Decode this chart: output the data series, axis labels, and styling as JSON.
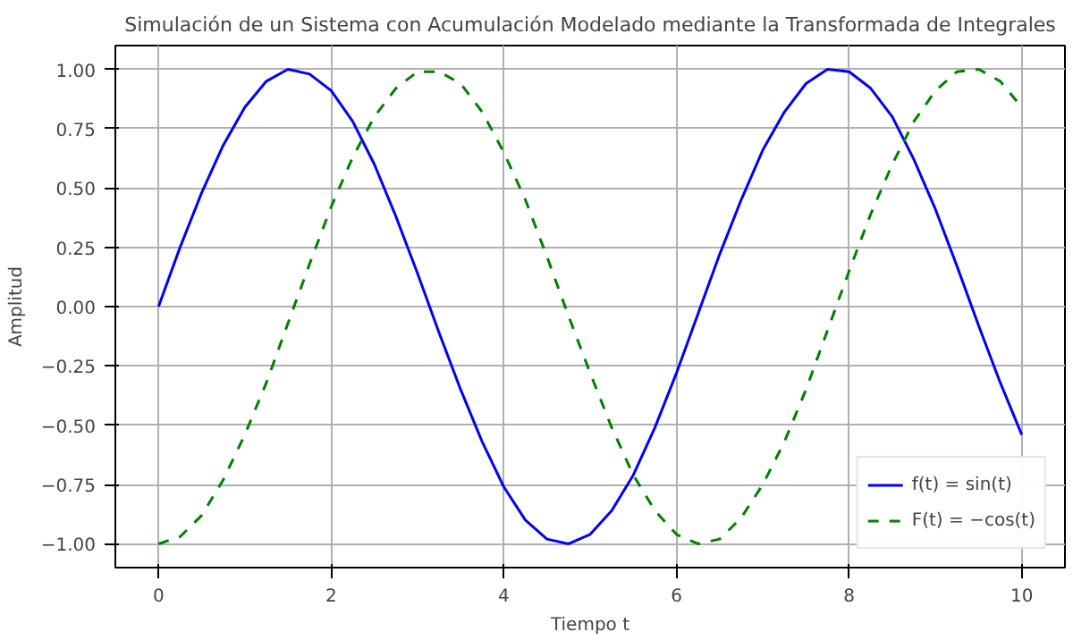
{
  "chart_data": {
    "type": "line",
    "title": "Simulación de un Sistema con Acumulación Modelado mediante la Transformada de Integrales",
    "xlabel": "Tiempo t",
    "ylabel": "Amplitud",
    "x": [
      0,
      0.25,
      0.5,
      0.75,
      1,
      1.25,
      1.5,
      1.75,
      2,
      2.25,
      2.5,
      2.75,
      3,
      3.25,
      3.5,
      3.75,
      4,
      4.25,
      4.5,
      4.75,
      5,
      5.25,
      5.5,
      5.75,
      6,
      6.25,
      6.5,
      6.75,
      7,
      7.25,
      7.5,
      7.75,
      8,
      8.25,
      8.5,
      8.75,
      9,
      9.25,
      9.5,
      9.75,
      10
    ],
    "series": [
      {
        "name": "f(t) = sin(t)",
        "color": "#0000ff",
        "line_style": "solid",
        "values": [
          0,
          0.25,
          0.48,
          0.68,
          0.84,
          0.95,
          1.0,
          0.98,
          0.91,
          0.78,
          0.6,
          0.38,
          0.14,
          -0.11,
          -0.35,
          -0.57,
          -0.76,
          -0.9,
          -0.98,
          -1.0,
          -0.96,
          -0.86,
          -0.71,
          -0.51,
          -0.28,
          -0.03,
          0.22,
          0.45,
          0.66,
          0.82,
          0.94,
          1.0,
          0.99,
          0.92,
          0.8,
          0.62,
          0.41,
          0.17,
          -0.08,
          -0.32,
          -0.54
        ]
      },
      {
        "name": "F(t) = −cos(t)",
        "color": "#008000",
        "line_style": "dashed",
        "values": [
          -1.0,
          -0.97,
          -0.88,
          -0.73,
          -0.54,
          -0.32,
          -0.07,
          0.18,
          0.42,
          0.63,
          0.8,
          0.92,
          0.99,
          0.99,
          0.94,
          0.82,
          0.65,
          0.45,
          0.21,
          -0.04,
          -0.28,
          -0.51,
          -0.71,
          -0.86,
          -0.96,
          -1.0,
          -0.98,
          -0.89,
          -0.75,
          -0.57,
          -0.35,
          -0.1,
          0.15,
          0.39,
          0.6,
          0.78,
          0.91,
          0.99,
          1.0,
          0.95,
          0.84
        ]
      }
    ],
    "xlim": [
      -0.5,
      10.5
    ],
    "ylim": [
      -1.1,
      1.1
    ],
    "xticks": [
      0,
      2,
      4,
      6,
      8,
      10
    ],
    "yticks": [
      {
        "value": -1,
        "label": "−1.00"
      },
      {
        "value": -0.75,
        "label": "−0.75"
      },
      {
        "value": -0.5,
        "label": "−0.50"
      },
      {
        "value": -0.25,
        "label": "−0.25"
      },
      {
        "value": 0,
        "label": "0.00"
      },
      {
        "value": 0.25,
        "label": "0.25"
      },
      {
        "value": 0.5,
        "label": "0.50"
      },
      {
        "value": 0.75,
        "label": "0.75"
      },
      {
        "value": 1,
        "label": "1.00"
      }
    ],
    "grid": true,
    "legend": "bottom right"
  }
}
